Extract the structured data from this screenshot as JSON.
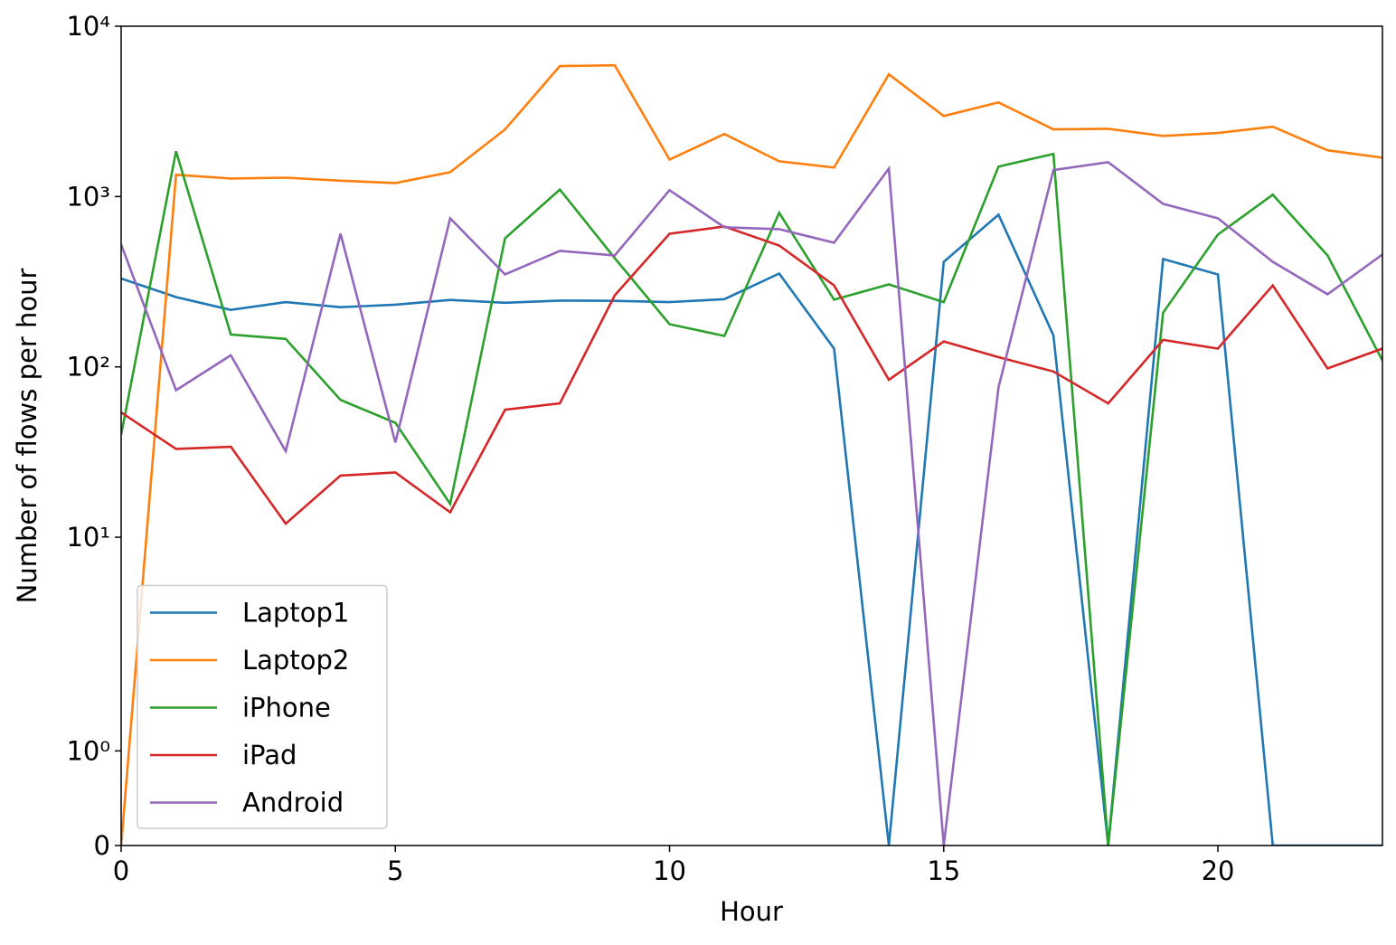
{
  "chart_data": {
    "type": "line",
    "x": [
      0,
      1,
      2,
      3,
      4,
      5,
      6,
      7,
      8,
      9,
      10,
      11,
      12,
      13,
      14,
      15,
      16,
      17,
      18,
      19,
      20,
      21,
      22,
      23
    ],
    "xlabel": "Hour",
    "ylabel": "Number of flows per hour",
    "xlim": [
      0,
      23
    ],
    "xticks": [
      0,
      5,
      10,
      15,
      20
    ],
    "yscale": "symlog",
    "linthresh": 2,
    "ylim": [
      0,
      10000
    ],
    "yticks": [
      0,
      {
        "value": 1,
        "label": "10⁰"
      },
      {
        "value": 10,
        "label": "10¹"
      },
      {
        "value": 100,
        "label": "10²"
      },
      {
        "value": 1000,
        "label": "10³"
      },
      {
        "value": 10000,
        "label": "10⁴"
      }
    ],
    "grid": false,
    "legend": "lower left",
    "series": [
      {
        "name": "Laptop1",
        "color": "#1f77b4",
        "values": [
          330,
          257,
          216,
          240,
          224,
          232,
          247,
          238,
          245,
          244,
          240,
          250,
          353,
          128,
          0,
          414,
          783,
          153,
          0,
          430,
          349,
          0,
          0,
          0
        ]
      },
      {
        "name": "Laptop2",
        "color": "#ff7f0e",
        "values": [
          0,
          1342,
          1276,
          1290,
          1240,
          1200,
          1390,
          2480,
          5830,
          5900,
          1650,
          2330,
          1610,
          1480,
          5220,
          2970,
          3570,
          2480,
          2500,
          2270,
          2360,
          2570,
          1870,
          1690
        ]
      },
      {
        "name": "iPhone",
        "color": "#2ca02c",
        "values": [
          40,
          1845,
          155,
          146,
          64,
          47,
          15.7,
          569,
          1100,
          435,
          178,
          152,
          802,
          248,
          305,
          240,
          1500,
          1780,
          0,
          208,
          598,
          1025,
          451,
          109
        ]
      },
      {
        "name": "iPad",
        "color": "#d62728",
        "values": [
          54,
          33,
          34,
          12,
          23,
          24,
          14,
          56,
          61,
          263,
          605,
          667,
          516,
          301,
          84,
          141,
          114,
          94,
          61,
          144,
          128,
          301,
          98,
          128
        ]
      },
      {
        "name": "Android",
        "color": "#9467bd",
        "values": [
          522,
          73,
          117,
          32,
          605,
          36,
          745,
          349,
          480,
          451,
          1090,
          660,
          644,
          536,
          1460,
          0,
          76,
          1430,
          1590,
          906,
          745,
          414,
          267,
          457
        ]
      }
    ]
  }
}
